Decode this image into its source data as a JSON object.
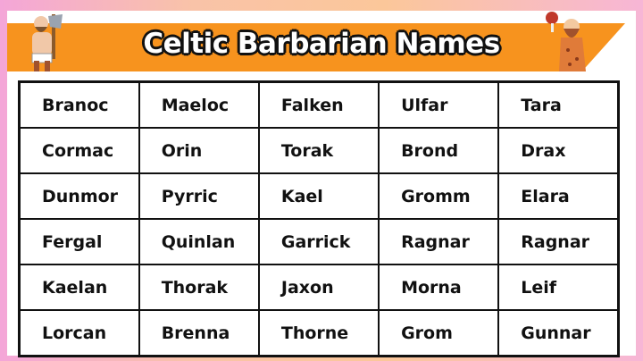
{
  "title": "Celtic Barbarian Names",
  "colors": {
    "banner": "#f7931e",
    "border": "#111111"
  },
  "rows": [
    [
      "Branoc",
      "Maeloc",
      "Falken",
      "Ulfar",
      "Tara"
    ],
    [
      "Cormac",
      "Orin",
      "Torak",
      "Brond",
      "Drax"
    ],
    [
      "Dunmor",
      "Pyrric",
      "Kael",
      "Gromm",
      "Elara"
    ],
    [
      "Fergal",
      "Quinlan",
      "Garrick",
      "Ragnar",
      "Ragnar"
    ],
    [
      "Kaelan",
      "Thorak",
      "Jaxon",
      "Morna",
      "Leif"
    ],
    [
      "Lorcan",
      "Brenna",
      "Thorne",
      "Grom",
      "Gunnar"
    ]
  ]
}
